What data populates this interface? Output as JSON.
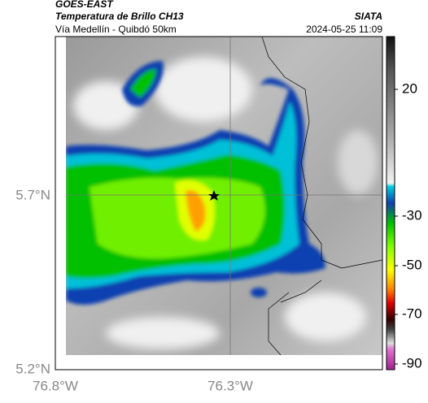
{
  "header": {
    "source": "GOES-EAST",
    "title": "Temperatura de Brillo CH13",
    "subtitle": "Vía Medellín - Quibdó 50km",
    "agency": "SIATA",
    "timestamp": "2024-05-25 11:09"
  },
  "map": {
    "lat_labels": [
      "5.7°N",
      "5.2°N"
    ],
    "lon_labels": [
      "76.8°W",
      "76.3°W"
    ]
  },
  "colorbar": {
    "ticks": [
      20,
      -30,
      -50,
      -70,
      -90
    ]
  }
}
